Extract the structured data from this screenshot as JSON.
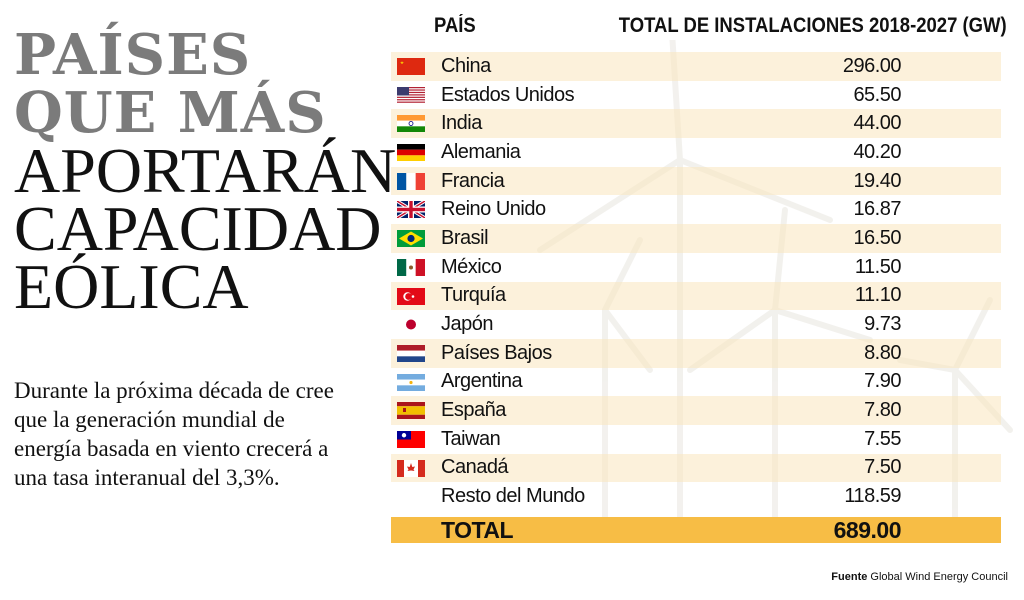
{
  "title": {
    "line1": "PAÍSES",
    "line2": "QUE MÁS",
    "line3": "APORTARÁN",
    "line4": "CAPACIDAD",
    "line5": "EÓLICA"
  },
  "intro": "Durante la próxima década de cree que la generación mundial de energía basada en viento crecerá a una tasa  interanual del 3,3%.",
  "chart_data": {
    "type": "table",
    "columns": [
      "PAÍS",
      "TOTAL DE INSTALACIONES 2018-2027 (GW)"
    ],
    "rows": [
      {
        "country": "China",
        "value": "296.00",
        "flag": "china-flag-icon"
      },
      {
        "country": "Estados Unidos",
        "value": "65.50",
        "flag": "usa-flag-icon"
      },
      {
        "country": "India",
        "value": "44.00",
        "flag": "india-flag-icon"
      },
      {
        "country": "Alemania",
        "value": "40.20",
        "flag": "germany-flag-icon"
      },
      {
        "country": "Francia",
        "value": "19.40",
        "flag": "france-flag-icon"
      },
      {
        "country": "Reino Unido",
        "value": "16.87",
        "flag": "uk-flag-icon"
      },
      {
        "country": "Brasil",
        "value": "16.50",
        "flag": "brazil-flag-icon"
      },
      {
        "country": "México",
        "value": "11.50",
        "flag": "mexico-flag-icon"
      },
      {
        "country": "Turquía",
        "value": "11.10",
        "flag": "turkey-flag-icon"
      },
      {
        "country": "Japón",
        "value": "9.73",
        "flag": "japan-flag-icon"
      },
      {
        "country": "Países Bajos",
        "value": "8.80",
        "flag": "netherlands-flag-icon"
      },
      {
        "country": "Argentina",
        "value": "7.90",
        "flag": "argentina-flag-icon"
      },
      {
        "country": "España",
        "value": "7.80",
        "flag": "spain-flag-icon"
      },
      {
        "country": "Taiwan",
        "value": "7.55",
        "flag": "taiwan-flag-icon"
      },
      {
        "country": "Canadá",
        "value": "7.50",
        "flag": "canada-flag-icon"
      },
      {
        "country": "Resto del Mundo",
        "value": "118.59",
        "flag": ""
      }
    ],
    "total": {
      "label": "TOTAL",
      "value": "689.00"
    }
  },
  "source": {
    "label": "Fuente",
    "text": "Global Wind Energy Council"
  },
  "colors": {
    "accent": "#f7bd45",
    "row_shade": "#faebd2",
    "title_grey": "#7b7b7b"
  }
}
